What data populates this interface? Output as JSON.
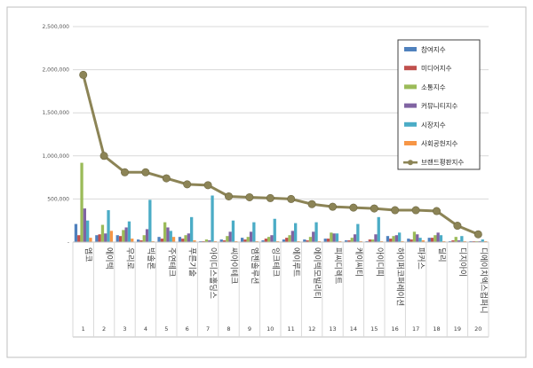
{
  "chart_data": {
    "type": "bar",
    "title": "",
    "xlabel": "",
    "ylabel": "",
    "ylim": [
      0,
      2500000
    ],
    "yticks": [
      0,
      500000,
      1000000,
      1500000,
      2000000,
      2500000
    ],
    "ytick_labels": [
      "-",
      "500,000",
      "1,000,000",
      "1,500,000",
      "2,000,000",
      "2,500,000"
    ],
    "grid": true,
    "legend_position": "top-right",
    "categories": [
      "엠코",
      "에이텍",
      "우리로",
      "빅솔론",
      "주연테크",
      "푸른기술",
      "아이디스홀딩스",
      "씨아이테크",
      "엠젠솔루션",
      "잉크테크",
      "에이루트",
      "에이텍모빌리티",
      "피씨디렉트",
      "케이씨티",
      "아이디피",
      "하이퍼코퍼레이션",
      "파커스",
      "딜리",
      "디지아이",
      "디에이치엑스컴퍼니"
    ],
    "ranks": [
      "1",
      "2",
      "3",
      "4",
      "5",
      "6",
      "7",
      "8",
      "9",
      "10",
      "11",
      "12",
      "13",
      "14",
      "15",
      "16",
      "17",
      "18",
      "19",
      "20"
    ],
    "series": [
      {
        "name": "참여지수",
        "color": "#4f81bd",
        "values": [
          210000,
          80000,
          80000,
          30000,
          60000,
          60000,
          10000,
          30000,
          50000,
          20000,
          30000,
          30000,
          40000,
          20000,
          10000,
          70000,
          40000,
          50000,
          10000,
          10000
        ]
      },
      {
        "name": "미디어지수",
        "color": "#c0504d",
        "values": [
          80000,
          90000,
          70000,
          20000,
          40000,
          40000,
          10000,
          20000,
          30000,
          40000,
          50000,
          20000,
          40000,
          20000,
          30000,
          40000,
          30000,
          50000,
          20000,
          10000
        ]
      },
      {
        "name": "소통지수",
        "color": "#9bbb59",
        "values": [
          920000,
          200000,
          140000,
          80000,
          230000,
          80000,
          30000,
          70000,
          60000,
          60000,
          80000,
          60000,
          110000,
          50000,
          30000,
          70000,
          120000,
          80000,
          60000,
          10000
        ]
      },
      {
        "name": "커뮤니티지수",
        "color": "#8064a2",
        "values": [
          390000,
          100000,
          170000,
          150000,
          170000,
          100000,
          20000,
          120000,
          120000,
          80000,
          130000,
          120000,
          100000,
          90000,
          90000,
          80000,
          90000,
          110000,
          20000,
          10000
        ]
      },
      {
        "name": "시장지수",
        "color": "#4bacc6",
        "values": [
          250000,
          370000,
          240000,
          490000,
          130000,
          290000,
          540000,
          250000,
          230000,
          270000,
          220000,
          230000,
          100000,
          210000,
          290000,
          110000,
          50000,
          80000,
          70000,
          30000
        ]
      },
      {
        "name": "사회공헌지수",
        "color": "#f79646",
        "values": [
          50000,
          130000,
          40000,
          10000,
          60000,
          20000,
          10000,
          10000,
          10000,
          10000,
          10000,
          10000,
          10000,
          10000,
          10000,
          10000,
          20000,
          10000,
          10000,
          10000
        ]
      }
    ],
    "line_series": {
      "name": "브랜드평판지수",
      "color": "#8c8456",
      "values": [
        1940000,
        1000000,
        810000,
        810000,
        740000,
        670000,
        660000,
        530000,
        520000,
        510000,
        500000,
        440000,
        410000,
        400000,
        390000,
        370000,
        370000,
        360000,
        190000,
        90000
      ]
    }
  }
}
